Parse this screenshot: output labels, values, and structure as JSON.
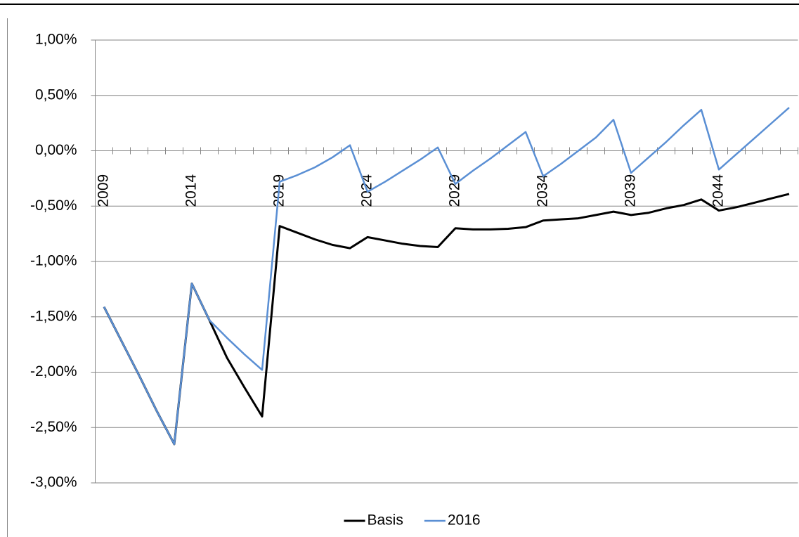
{
  "chart_data": {
    "type": "line",
    "categories": [
      "2009",
      null,
      null,
      null,
      null,
      "2014",
      null,
      null,
      null,
      null,
      "2019",
      null,
      null,
      null,
      null,
      "2024",
      null,
      null,
      null,
      null,
      "2029",
      null,
      null,
      null,
      null,
      "2034",
      null,
      null,
      null,
      null,
      "2039",
      null,
      null,
      null,
      null,
      "2044",
      null,
      null,
      null,
      null
    ],
    "series": [
      {
        "name": "Basis",
        "color": "#000000",
        "values": [
          -1.41,
          -1.72,
          -2.03,
          -2.35,
          -2.65,
          -1.2,
          -1.53,
          -1.87,
          -2.14,
          -2.4,
          -0.68,
          -0.74,
          -0.8,
          -0.85,
          -0.88,
          -0.78,
          -0.81,
          -0.84,
          -0.86,
          -0.87,
          -0.7,
          -0.71,
          -0.71,
          -0.705,
          -0.69,
          -0.63,
          -0.62,
          -0.61,
          -0.58,
          -0.55,
          -0.58,
          -0.56,
          -0.52,
          -0.49,
          -0.44,
          -0.54,
          -0.51,
          -0.47,
          -0.43,
          -0.39
        ]
      },
      {
        "name": "2016",
        "color": "#5a8fd4",
        "values": [
          -1.41,
          -1.72,
          -2.03,
          -2.35,
          -2.65,
          -1.2,
          -1.53,
          -1.69,
          -1.84,
          -1.98,
          -0.28,
          -0.22,
          -0.15,
          -0.06,
          0.05,
          -0.37,
          -0.28,
          -0.18,
          -0.08,
          0.03,
          -0.3,
          -0.18,
          -0.07,
          0.05,
          0.17,
          -0.23,
          -0.12,
          0.0,
          0.12,
          0.28,
          -0.2,
          -0.06,
          0.08,
          0.23,
          0.37,
          -0.17,
          -0.03,
          0.11,
          0.25,
          0.39
        ]
      }
    ],
    "ylim": [
      -3,
      1
    ],
    "yticks": [
      {
        "value": -3,
        "label": "-3,00%"
      },
      {
        "value": -2.5,
        "label": "-2,50%"
      },
      {
        "value": -2,
        "label": "-2,00%"
      },
      {
        "value": -1.5,
        "label": "-1,50%"
      },
      {
        "value": -1,
        "label": "-1,00%"
      },
      {
        "value": -0.5,
        "label": "-0,50%"
      },
      {
        "value": 0,
        "label": "0,00%"
      },
      {
        "value": 0.5,
        "label": "0,50%"
      },
      {
        "value": 1,
        "label": "1,00%"
      }
    ],
    "grid": true,
    "legend": "bottom"
  }
}
